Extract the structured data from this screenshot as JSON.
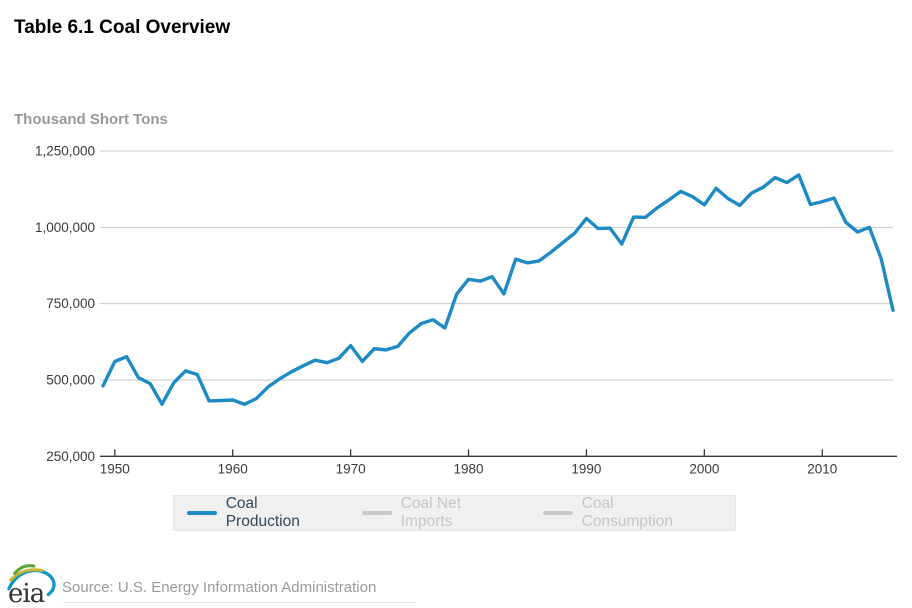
{
  "header": {
    "title": "Table 6.1 Coal Overview"
  },
  "chart_data": {
    "type": "line",
    "title": "Table 6.1 Coal Overview",
    "ylabel": "Thousand Short Tons",
    "xlabel": "",
    "unit_label": "Thousand Short Tons",
    "grid": "horizontal",
    "legend_position": "bottom",
    "xlim": [
      1949,
      2016
    ],
    "ylim": [
      250000,
      1250000
    ],
    "x_ticks": [
      1950,
      1960,
      1970,
      1980,
      1990,
      2000,
      2010
    ],
    "y_ticks": [
      1250000,
      1000000,
      750000,
      500000,
      250000
    ],
    "y_tick_labels": [
      "1,250,000",
      "1,000,000",
      "750,000",
      "500,000",
      "250,000"
    ],
    "x": [
      1949,
      1950,
      1951,
      1952,
      1953,
      1954,
      1955,
      1956,
      1957,
      1958,
      1959,
      1960,
      1961,
      1962,
      1963,
      1964,
      1965,
      1966,
      1967,
      1968,
      1969,
      1970,
      1971,
      1972,
      1973,
      1974,
      1975,
      1976,
      1977,
      1978,
      1979,
      1980,
      1981,
      1982,
      1983,
      1984,
      1985,
      1986,
      1987,
      1988,
      1989,
      1990,
      1991,
      1992,
      1993,
      1994,
      1995,
      1996,
      1997,
      1998,
      1999,
      2000,
      2001,
      2002,
      2003,
      2004,
      2005,
      2006,
      2007,
      2008,
      2009,
      2010,
      2011,
      2012,
      2013,
      2014,
      2015,
      2016
    ],
    "series": [
      {
        "name": "Coal Production",
        "color": "#1e8ac4",
        "values": [
          480570,
          560386,
          576335,
          507424,
          488239,
          420789,
          490838,
          529774,
          518042,
          431617,
          432677,
          434329,
          420423,
          439043,
          477195,
          504182,
          526954,
          546822,
          564882,
          556706,
          570978,
          612661,
          560919,
          602492,
          598568,
          610023,
          654641,
          684913,
          697205,
          670164,
          781134,
          829700,
          823775,
          838112,
          782091,
          895921,
          883638,
          890315,
          918762,
          950265,
          980729,
          1029076,
          995984,
          997545,
          945424,
          1033504,
          1032974,
          1063856,
          1089932,
          1117535,
          1100431,
          1073612,
          1127689,
          1094283,
          1071753,
          1112099,
          1131498,
          1162750,
          1146635,
          1171809,
          1074923,
          1084368,
          1095628,
          1016458,
          984842,
          1000049,
          896941,
          728364
        ]
      }
    ],
    "hidden_series": [
      "Coal Net Imports",
      "Coal Consumption"
    ]
  },
  "legend": {
    "items": [
      {
        "label": "Coal Production",
        "color": "#1e8ac4",
        "active": true
      },
      {
        "label": "Coal Net Imports",
        "color": "#c9c9c9",
        "active": false
      },
      {
        "label": "Coal Consumption",
        "color": "#c9c9c9",
        "active": false
      }
    ]
  },
  "footer": {
    "logo_text": "eia",
    "source": "Source: U.S. Energy Information Administration"
  },
  "colors": {
    "line": "#1e8ac4",
    "gridline": "#c9c9c9",
    "axis": "#3a3a3a",
    "legend_bg": "#f0f0f0",
    "muted_text": "#9a9a9a",
    "disabled_text": "#c6c6c6"
  }
}
